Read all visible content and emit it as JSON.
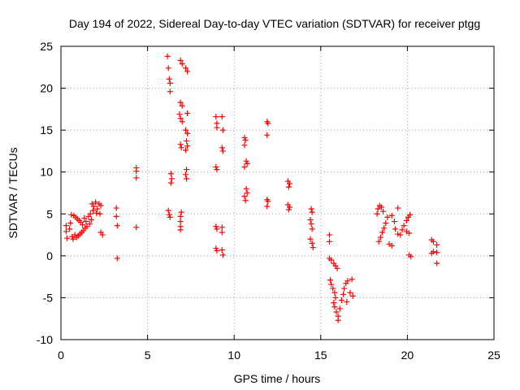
{
  "chart_data": {
    "type": "scatter",
    "title": "Day 194 of 2022, Sidereal Day-to-day VTEC variation (SDTVAR) for receiver ptgg",
    "xlabel": "GPS time / hours",
    "ylabel": "SDTVAR / TECUs",
    "xlim": [
      0,
      25
    ],
    "ylim": [
      -10,
      25
    ],
    "xticks": [
      0,
      5,
      10,
      15,
      20,
      25
    ],
    "yticks": [
      -10,
      -5,
      0,
      5,
      10,
      15,
      20,
      25
    ],
    "xtick_labels": [
      "0",
      "5",
      "10",
      "15",
      "20",
      "25"
    ],
    "ytick_labels": [
      "-10",
      "-5",
      "0",
      "5",
      "10",
      "15",
      "20",
      "25"
    ],
    "grid": true,
    "marker": "+",
    "color": "#ff0000",
    "series": [
      {
        "name": "SDTVAR",
        "points": [
          [
            0.3,
            3.6
          ],
          [
            0.3,
            2.9
          ],
          [
            0.35,
            2.1
          ],
          [
            0.5,
            3.2
          ],
          [
            0.55,
            3.9
          ],
          [
            0.6,
            4.9
          ],
          [
            0.65,
            2.3
          ],
          [
            0.7,
            2.0
          ],
          [
            0.75,
            4.8
          ],
          [
            0.8,
            2.5
          ],
          [
            0.85,
            4.6
          ],
          [
            0.9,
            2.2
          ],
          [
            0.95,
            4.4
          ],
          [
            1.0,
            2.4
          ],
          [
            1.05,
            4.2
          ],
          [
            1.1,
            2.6
          ],
          [
            1.15,
            4.0
          ],
          [
            1.2,
            2.8
          ],
          [
            1.25,
            3.7
          ],
          [
            1.3,
            3.0
          ],
          [
            1.35,
            4.5
          ],
          [
            1.4,
            3.3
          ],
          [
            1.45,
            4.1
          ],
          [
            1.5,
            3.5
          ],
          [
            1.6,
            4.7
          ],
          [
            1.65,
            3.8
          ],
          [
            1.7,
            5.0
          ],
          [
            1.75,
            4.3
          ],
          [
            1.8,
            6.2
          ],
          [
            1.85,
            5.4
          ],
          [
            1.9,
            5.9
          ],
          [
            2.0,
            6.4
          ],
          [
            2.05,
            5.1
          ],
          [
            2.1,
            5.6
          ],
          [
            2.2,
            6.2
          ],
          [
            2.25,
            5.0
          ],
          [
            2.3,
            6.0
          ],
          [
            2.3,
            2.8
          ],
          [
            2.4,
            2.5
          ],
          [
            3.2,
            5.7
          ],
          [
            3.2,
            4.7
          ],
          [
            3.25,
            3.6
          ],
          [
            3.25,
            -0.3
          ],
          [
            4.35,
            10.5
          ],
          [
            4.35,
            10.1
          ],
          [
            4.35,
            9.3
          ],
          [
            4.35,
            3.4
          ],
          [
            6.15,
            23.8
          ],
          [
            6.2,
            22.4
          ],
          [
            6.25,
            21.1
          ],
          [
            6.3,
            20.6
          ],
          [
            6.3,
            19.6
          ],
          [
            6.35,
            9.8
          ],
          [
            6.4,
            9.2
          ],
          [
            6.35,
            8.7
          ],
          [
            6.2,
            5.4
          ],
          [
            6.25,
            4.9
          ],
          [
            6.3,
            4.6
          ],
          [
            6.9,
            23.3
          ],
          [
            7.0,
            22.9
          ],
          [
            7.2,
            22.4
          ],
          [
            7.3,
            22.0
          ],
          [
            6.9,
            18.3
          ],
          [
            7.0,
            17.9
          ],
          [
            6.85,
            16.9
          ],
          [
            6.9,
            16.4
          ],
          [
            7.0,
            16.0
          ],
          [
            7.3,
            17.0
          ],
          [
            7.2,
            15.0
          ],
          [
            7.3,
            14.6
          ],
          [
            7.25,
            13.7
          ],
          [
            7.3,
            13.1
          ],
          [
            7.2,
            12.6
          ],
          [
            6.9,
            13.3
          ],
          [
            6.95,
            12.9
          ],
          [
            7.25,
            10.3
          ],
          [
            7.2,
            9.7
          ],
          [
            7.25,
            9.2
          ],
          [
            6.95,
            5.2
          ],
          [
            6.9,
            4.7
          ],
          [
            6.9,
            4.1
          ],
          [
            6.9,
            3.5
          ],
          [
            6.9,
            3.1
          ],
          [
            8.95,
            16.6
          ],
          [
            9.0,
            15.8
          ],
          [
            9.0,
            15.3
          ],
          [
            9.3,
            16.6
          ],
          [
            9.35,
            15.0
          ],
          [
            9.3,
            12.9
          ],
          [
            9.35,
            12.5
          ],
          [
            8.95,
            10.6
          ],
          [
            9.0,
            10.3
          ],
          [
            8.95,
            3.5
          ],
          [
            9.0,
            3.2
          ],
          [
            9.3,
            3.4
          ],
          [
            9.3,
            2.8
          ],
          [
            8.95,
            0.9
          ],
          [
            9.0,
            0.6
          ],
          [
            9.3,
            0.7
          ],
          [
            9.35,
            0.1
          ],
          [
            10.6,
            14.1
          ],
          [
            10.65,
            13.8
          ],
          [
            10.6,
            13.2
          ],
          [
            10.7,
            11.3
          ],
          [
            10.75,
            11.0
          ],
          [
            10.6,
            10.6
          ],
          [
            10.7,
            8.0
          ],
          [
            10.75,
            7.5
          ],
          [
            10.6,
            7.1
          ],
          [
            10.65,
            6.6
          ],
          [
            11.9,
            16.0
          ],
          [
            11.95,
            15.8
          ],
          [
            11.9,
            14.4
          ],
          [
            11.9,
            6.7
          ],
          [
            11.95,
            6.5
          ],
          [
            11.9,
            5.9
          ],
          [
            13.1,
            8.9
          ],
          [
            13.2,
            8.6
          ],
          [
            13.15,
            8.2
          ],
          [
            13.1,
            6.1
          ],
          [
            13.2,
            5.8
          ],
          [
            13.15,
            5.5
          ],
          [
            14.45,
            5.6
          ],
          [
            14.5,
            5.2
          ],
          [
            14.4,
            4.3
          ],
          [
            14.45,
            3.8
          ],
          [
            14.5,
            3.2
          ],
          [
            14.4,
            2.0
          ],
          [
            14.5,
            1.5
          ],
          [
            14.55,
            1.0
          ],
          [
            15.5,
            2.5
          ],
          [
            15.5,
            1.7
          ],
          [
            15.5,
            -0.3
          ],
          [
            15.6,
            -0.5
          ],
          [
            15.75,
            -0.9
          ],
          [
            15.85,
            -1.2
          ],
          [
            15.95,
            -1.5
          ],
          [
            15.55,
            -2.9
          ],
          [
            15.6,
            -3.4
          ],
          [
            15.7,
            -3.9
          ],
          [
            15.8,
            -4.4
          ],
          [
            15.85,
            -5.0
          ],
          [
            15.75,
            -5.6
          ],
          [
            15.8,
            -6.1
          ],
          [
            15.9,
            -6.7
          ],
          [
            16.0,
            -7.2
          ],
          [
            16.0,
            -7.7
          ],
          [
            16.1,
            -6.3
          ],
          [
            16.2,
            -5.3
          ],
          [
            16.3,
            -4.6
          ],
          [
            16.35,
            -3.9
          ],
          [
            16.45,
            -3.3
          ],
          [
            16.55,
            -3.0
          ],
          [
            16.7,
            -4.4
          ],
          [
            16.8,
            -2.8
          ],
          [
            16.85,
            -4.8
          ],
          [
            16.5,
            -5.5
          ],
          [
            18.25,
            5.0
          ],
          [
            18.3,
            5.6
          ],
          [
            18.4,
            6.0
          ],
          [
            18.5,
            5.8
          ],
          [
            18.6,
            5.3
          ],
          [
            18.35,
            1.7
          ],
          [
            18.45,
            2.2
          ],
          [
            18.55,
            2.8
          ],
          [
            18.65,
            3.3
          ],
          [
            18.75,
            3.9
          ],
          [
            18.85,
            4.6
          ],
          [
            18.95,
            1.4
          ],
          [
            19.1,
            1.2
          ],
          [
            19.1,
            4.8
          ],
          [
            19.25,
            4.1
          ],
          [
            19.3,
            3.2
          ],
          [
            19.45,
            5.7
          ],
          [
            19.45,
            2.6
          ],
          [
            19.6,
            2.5
          ],
          [
            19.7,
            3.1
          ],
          [
            19.8,
            3.6
          ],
          [
            19.95,
            4.2
          ],
          [
            20.05,
            4.6
          ],
          [
            20.15,
            4.9
          ],
          [
            19.95,
            2.9
          ],
          [
            20.1,
            2.7
          ],
          [
            20.1,
            0.1
          ],
          [
            20.2,
            -0.1
          ],
          [
            21.4,
            1.9
          ],
          [
            21.5,
            1.7
          ],
          [
            21.5,
            0.5
          ],
          [
            21.4,
            0.3
          ],
          [
            21.7,
            1.3
          ],
          [
            21.7,
            0.4
          ],
          [
            21.7,
            -0.9
          ]
        ]
      }
    ]
  }
}
